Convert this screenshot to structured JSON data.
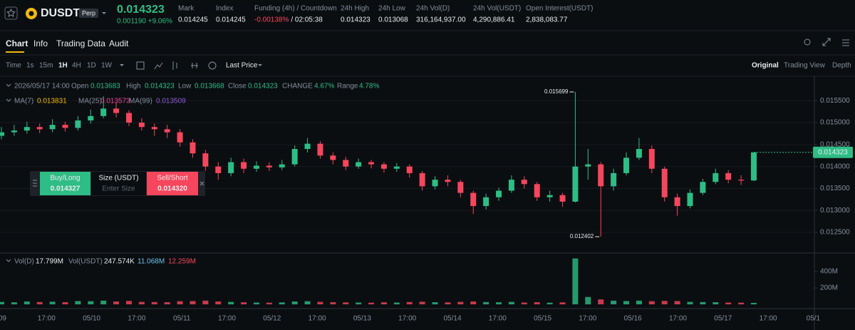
{
  "header": {
    "symbol": "DUSDT",
    "badge": "Perp",
    "change": "0.001190 +9.06%",
    "stats": [
      {
        "label": "Mark",
        "value": "0.014245"
      },
      {
        "label": "Index",
        "value": "0.014245"
      },
      {
        "label": "Funding (4h) / Countdown",
        "value": "-0.00138%",
        "extra": "/ 02:05:38"
      },
      {
        "label": "24h High",
        "value": "0.014323"
      },
      {
        "label": "24h Low",
        "value": "0.013068"
      },
      {
        "label": "24h Vol(D)",
        "value": "316,164,937.00"
      },
      {
        "label": "24h Vol(USDT)",
        "value": "4,290,886.41"
      },
      {
        "label": "Open Interest(USDT)",
        "value": "2,838,083.77"
      }
    ]
  },
  "tabs": [
    "Chart",
    "Info",
    "Trading Data",
    "Audit"
  ],
  "toolbar": {
    "intervals": [
      "Time",
      "1s",
      "15m",
      "1H",
      "4H",
      "1D",
      "1W"
    ],
    "price_type": "Last Price",
    "views": [
      "Original",
      "Trading View",
      "Depth"
    ]
  },
  "legend": {
    "datetime": "2026/05/17 14:00",
    "open": "Open",
    "high": "High",
    "low": "Low",
    "close": "Close",
    "change_label": "CHANGE",
    "change": "4.67%",
    "range_label": "Range",
    "range": "4.78%",
    "ma": [
      {
        "name": "MA(7)",
        "value": "0.013831",
        "color": "#f0b90b"
      },
      {
        "name": "MA(25)",
        "value": "0.013573",
        "color": "#e84a9c"
      },
      {
        "name": "MA(99)",
        "value": "0.013509",
        "color": "#8e5cd9"
      }
    ],
    "vol": [
      {
        "name": "Vol(D)",
        "value": "17.799M"
      },
      {
        "name": "Vol(USDT)",
        "value": "247.574K"
      },
      {
        "value": "11.068M",
        "color": "#6cc4e8"
      },
      {
        "value": "12.259M",
        "color": "#f6465d"
      }
    ]
  },
  "order": {
    "buy": "Buy/Long",
    "buy_price": "0.014327",
    "size": "Size (USDT)",
    "placeholder": "Enter Size",
    "sell": "Sell/Short",
    "sell_price": "0.014320"
  },
  "chart_data": {
    "type": "candlestick",
    "up_color": "#2ebd85",
    "down_color": "#f6465d",
    "open": [
      0.0147,
      0.01478,
      0.01482,
      0.0149,
      0.01485,
      0.01495,
      0.01488,
      0.01505,
      0.01515,
      0.01532,
      0.01522,
      0.015,
      0.0149,
      0.01485,
      0.01478,
      0.01455,
      0.0143,
      0.014,
      0.01385,
      0.0141,
      0.01395,
      0.01402,
      0.01398,
      0.01405,
      0.0144,
      0.01452,
      0.01425,
      0.01415,
      0.014,
      0.0141,
      0.01405,
      0.01395,
      0.014,
      0.01385,
      0.01355,
      0.0137,
      0.01365,
      0.0134,
      0.0131,
      0.0133,
      0.01345,
      0.0137,
      0.0136,
      0.0133,
      0.01335,
      0.0132,
      0.014,
      0.01405,
      0.01355,
      0.01385,
      0.0142,
      0.0144,
      0.01395,
      0.0133,
      0.0131,
      0.0134,
      0.01365,
      0.01385,
      0.0137,
      0.013683
    ],
    "high": [
      0.0149,
      0.01495,
      0.01502,
      0.01498,
      0.01508,
      0.01502,
      0.01515,
      0.0153,
      0.0156,
      0.01545,
      0.01528,
      0.0151,
      0.01498,
      0.01495,
      0.01485,
      0.01462,
      0.01438,
      0.0141,
      0.0142,
      0.01418,
      0.01412,
      0.0141,
      0.01415,
      0.01448,
      0.01465,
      0.01458,
      0.01432,
      0.01422,
      0.01418,
      0.01415,
      0.0141,
      0.01408,
      0.01405,
      0.0139,
      0.01378,
      0.0138,
      0.0137,
      0.01345,
      0.01338,
      0.01352,
      0.0138,
      0.01378,
      0.01365,
      0.01345,
      0.0134,
      0.015699,
      0.0144,
      0.0141,
      0.01395,
      0.01432,
      0.01465,
      0.01448,
      0.014,
      0.01338,
      0.01348,
      0.01372,
      0.01395,
      0.01392,
      0.0138,
      0.014323
    ],
    "low": [
      0.01462,
      0.0147,
      0.01475,
      0.01476,
      0.01478,
      0.0148,
      0.01482,
      0.01498,
      0.0151,
      0.01512,
      0.01492,
      0.01482,
      0.0147,
      0.01465,
      0.01445,
      0.0142,
      0.0139,
      0.0137,
      0.01378,
      0.01385,
      0.01388,
      0.0139,
      0.01392,
      0.014,
      0.01432,
      0.01418,
      0.01405,
      0.01392,
      0.01395,
      0.01396,
      0.01386,
      0.01388,
      0.01375,
      0.01345,
      0.01348,
      0.01355,
      0.0133,
      0.01292,
      0.01302,
      0.01322,
      0.0134,
      0.0135,
      0.01322,
      0.0132,
      0.01308,
      0.01318,
      0.0137,
      0.012402,
      0.01345,
      0.0138,
      0.01415,
      0.01385,
      0.0132,
      0.01288,
      0.01305,
      0.01335,
      0.0136,
      0.01362,
      0.01358,
      0.013668
    ],
    "close": [
      0.01478,
      0.01482,
      0.0149,
      0.01485,
      0.01495,
      0.01488,
      0.01505,
      0.01515,
      0.01532,
      0.01522,
      0.015,
      0.0149,
      0.01485,
      0.01478,
      0.01455,
      0.0143,
      0.014,
      0.01385,
      0.0141,
      0.01395,
      0.01402,
      0.01398,
      0.01405,
      0.0144,
      0.01452,
      0.01425,
      0.01415,
      0.014,
      0.0141,
      0.01405,
      0.01395,
      0.014,
      0.01385,
      0.01355,
      0.0137,
      0.01365,
      0.0134,
      0.0131,
      0.0133,
      0.01345,
      0.0137,
      0.0136,
      0.0133,
      0.01335,
      0.0132,
      0.014,
      0.01405,
      0.01355,
      0.01385,
      0.0142,
      0.0144,
      0.01395,
      0.0133,
      0.0131,
      0.0134,
      0.01365,
      0.01385,
      0.0137,
      0.01368,
      0.014323
    ],
    "ylim": [
      0.01203,
      0.01604
    ],
    "yticks": [
      {
        "value": 0.0125,
        "label": "0.012500"
      },
      {
        "value": 0.013,
        "label": "0.013000"
      },
      {
        "value": 0.0135,
        "label": "0.013500"
      },
      {
        "value": 0.014,
        "label": "0.014000"
      },
      {
        "value": 0.0145,
        "label": "0.014500"
      },
      {
        "value": 0.015,
        "label": "0.015000"
      },
      {
        "value": 0.0155,
        "label": "0.015500"
      }
    ],
    "volume": {
      "values": [
        30000000,
        25000000,
        35000000,
        28000000,
        32000000,
        26000000,
        40000000,
        38000000,
        45000000,
        35000000,
        42000000,
        30000000,
        28000000,
        26000000,
        38000000,
        40000000,
        45000000,
        35000000,
        30000000,
        25000000,
        22000000,
        20000000,
        24000000,
        35000000,
        38000000,
        30000000,
        26000000,
        24000000,
        22000000,
        20000000,
        25000000,
        22000000,
        28000000,
        32000000,
        26000000,
        24000000,
        30000000,
        35000000,
        28000000,
        25000000,
        30000000,
        22000000,
        26000000,
        20000000,
        24000000,
        560000000,
        90000000,
        60000000,
        45000000,
        40000000,
        45000000,
        38000000,
        42000000,
        40000000,
        30000000,
        28000000,
        26000000,
        22000000,
        20000000,
        17799000
      ],
      "ylim": [
        0,
        609000000
      ],
      "yticks": [
        {
          "value": 200000000,
          "label": "200M"
        },
        {
          "value": 400000000,
          "label": "400M"
        }
      ]
    },
    "xtick_labels": [
      "/09",
      "17:00",
      "05/10",
      "17:00",
      "05/11",
      "17:00",
      "05/12",
      "17:00",
      "05/13",
      "17:00",
      "05/14",
      "17:00",
      "05/15",
      "17:00",
      "05/16",
      "17:00",
      "05/17",
      "17:00",
      "05/1"
    ]
  }
}
